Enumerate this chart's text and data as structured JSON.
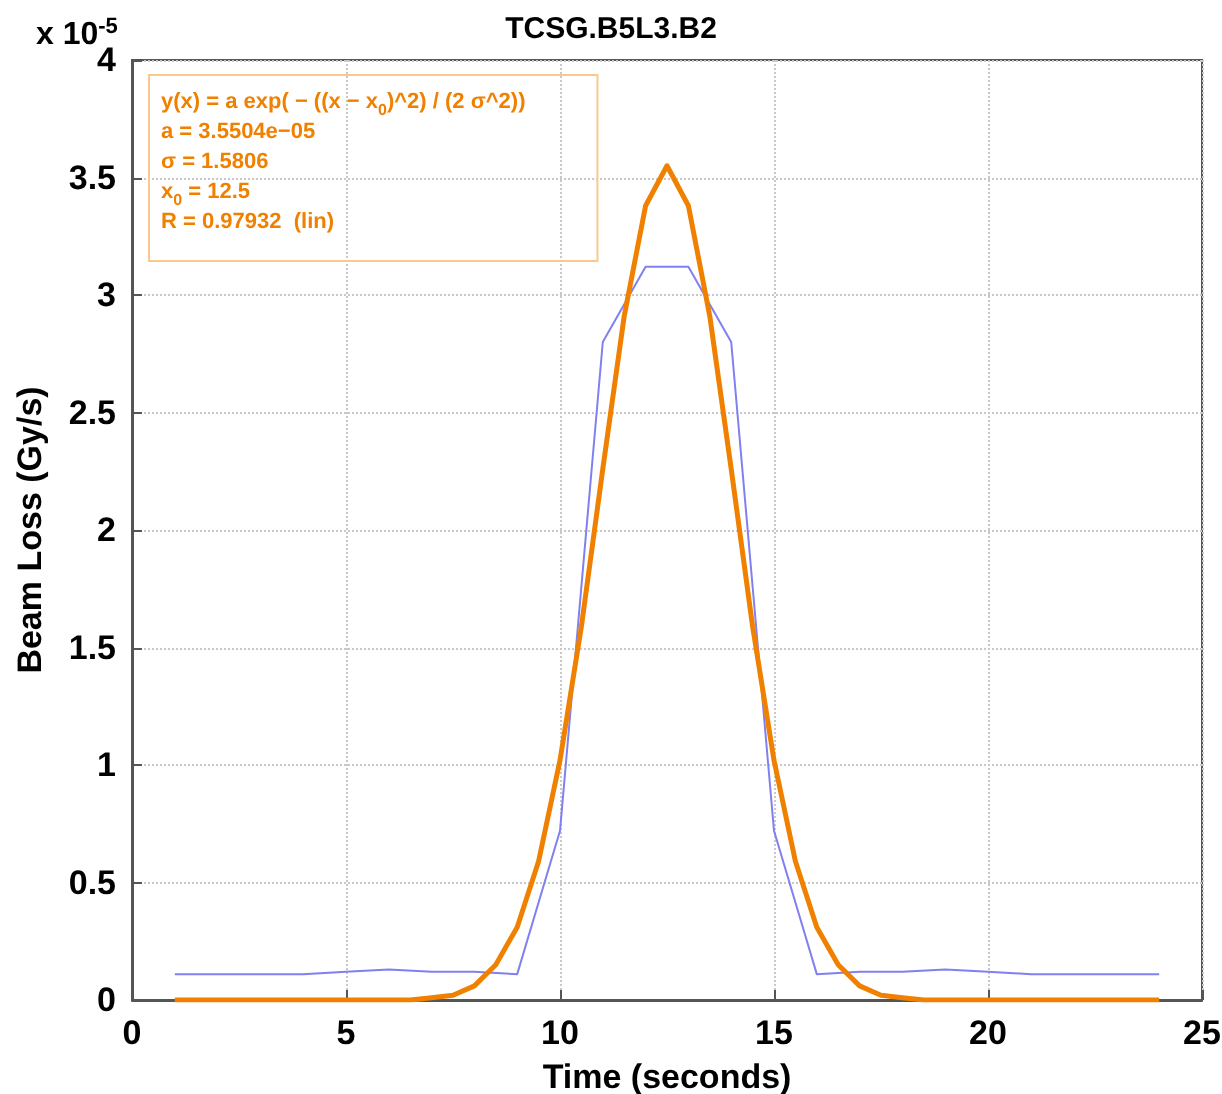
{
  "chart_data": {
    "type": "line",
    "title": "TCSG.B5L3.B2",
    "xlabel": "Time (seconds)",
    "ylabel": "Beam Loss (Gy/s)",
    "annotations": [
      "x 10$^{-5}$",
      "y(x) = a exp( − ((x − x$_{0}$)^2) / (2 σ^2))\na = 3.5504e−05\nσ = 1.5806\nx$_{0}$ = 12.5\nR = 0.97932  (lin)"
    ],
    "xlim": [
      0,
      25
    ],
    "xticks": [
      0,
      5,
      10,
      15,
      20,
      25
    ],
    "ylim": [
      0,
      4
    ],
    "yticks": [
      0,
      0.5,
      1,
      1.5,
      2,
      2.5,
      3,
      3.5,
      4
    ],
    "grid": true,
    "marker": "none",
    "line_style": "solid",
    "series": [
      {
        "color": "#8080f0",
        "x": [
          1,
          2,
          3,
          4,
          5,
          6,
          7,
          8,
          9,
          10,
          11,
          12,
          13,
          14,
          15,
          16,
          17,
          18,
          19,
          20,
          21,
          22,
          23,
          24
        ],
        "values": [
          0.11,
          0.11,
          0.11,
          0.11,
          0.12,
          0.13,
          0.12,
          0.12,
          0.11,
          0.72,
          2.8,
          3.12,
          3.12,
          2.8,
          0.72,
          0.11,
          0.12,
          0.12,
          0.13,
          0.12,
          0.11,
          0.11,
          0.11,
          0.11
        ]
      },
      {
        "color": "#f08000",
        "x": [
          1,
          3,
          5,
          6,
          6.5,
          7,
          7.5,
          8,
          8.5,
          9,
          9.5,
          10,
          10.5,
          11,
          11.5,
          12,
          12.5,
          13,
          13.5,
          14,
          14.5,
          15,
          15.5,
          16,
          16.5,
          17,
          17.5,
          18,
          18.5,
          19,
          20,
          22,
          24
        ],
        "values": [
          0,
          0,
          0,
          0,
          0,
          0.01,
          0.02,
          0.06,
          0.15,
          0.31,
          0.59,
          1.02,
          1.59,
          2.26,
          2.91,
          3.38,
          3.55,
          3.38,
          2.91,
          2.26,
          1.59,
          1.02,
          0.59,
          0.31,
          0.15,
          0.06,
          0.02,
          0.01,
          0,
          0,
          0,
          0,
          0
        ]
      }
    ]
  }
}
